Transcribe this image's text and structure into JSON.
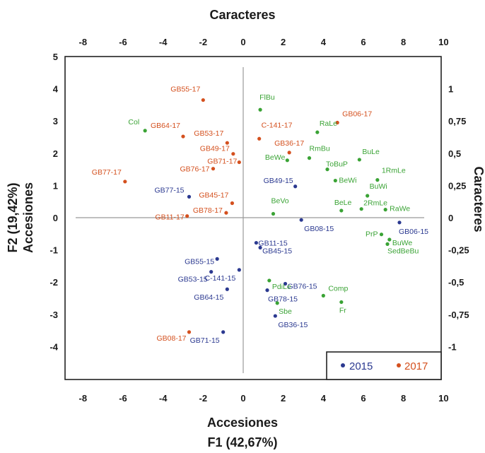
{
  "chart_data": {
    "type": "scatter",
    "title_top": "Caracteres",
    "title_bottom_1": "Accesiones",
    "title_bottom_2": "F1 (42,67%)",
    "title_left_1": "F2 (19,42%)",
    "title_left_2": "Accesiones",
    "title_right": "Caracteres",
    "bottom_axis": {
      "ticks": [
        "-8",
        "-6",
        "-4",
        "-2",
        "0",
        "2",
        "4",
        "6",
        "8",
        "10"
      ],
      "range": [
        -8,
        10
      ]
    },
    "top_axis": {
      "ticks": [
        "-8",
        "-6",
        "-4",
        "-2",
        "0",
        "2",
        "4",
        "6",
        "8",
        "10"
      ],
      "range": [
        -8,
        10
      ]
    },
    "left_axis": {
      "ticks": [
        "5",
        "4",
        "3",
        "2",
        "1",
        "0",
        "-1",
        "-2",
        "-3",
        "-4"
      ],
      "range": [
        -4,
        5
      ]
    },
    "right_axis": {
      "ticks": [
        "1",
        "0,75",
        "0,5",
        "0,25",
        "0",
        "-0,25",
        "-0,5",
        "-0,75",
        "-1"
      ],
      "range": [
        -1,
        1
      ]
    },
    "colors": {
      "2015": "#2b3990",
      "2017": "#d4501e",
      "traits": "#3aa335"
    },
    "legend": {
      "position": "bottom-right",
      "entries": [
        {
          "name": "2015",
          "color": "#2b3990"
        },
        {
          "name": "2017",
          "color": "#d4501e"
        }
      ]
    },
    "series": [
      {
        "name": "2015",
        "points": [
          {
            "label": "GB77-15",
            "x": -2.7,
            "y": 0.65
          },
          {
            "label": "GB49-15",
            "x": 2.6,
            "y": 0.97
          },
          {
            "label": "GB08-15",
            "x": 2.9,
            "y": -0.07
          },
          {
            "label": "GB06-15",
            "x": 7.8,
            "y": -0.15
          },
          {
            "label": "GB11-15",
            "x": 0.65,
            "y": -0.78
          },
          {
            "label": "GB45-15",
            "x": 0.85,
            "y": -0.93
          },
          {
            "label": "GB55-15",
            "x": -1.3,
            "y": -1.28
          },
          {
            "label": "GB53-15",
            "x": -1.6,
            "y": -1.68
          },
          {
            "label": "C-141-15",
            "x": -0.2,
            "y": -1.62
          },
          {
            "label": "GB64-15",
            "x": -0.8,
            "y": -2.22
          },
          {
            "label": "GB76-15",
            "x": 2.1,
            "y": -2.05
          },
          {
            "label": "GB78-15",
            "x": 1.2,
            "y": -2.25
          },
          {
            "label": "GB36-15",
            "x": 1.6,
            "y": -3.05
          },
          {
            "label": "GB71-15",
            "x": -1.0,
            "y": -3.55
          }
        ]
      },
      {
        "name": "2017",
        "points": [
          {
            "label": "GB55-17",
            "x": -2.0,
            "y": 3.65
          },
          {
            "label": "GB64-17",
            "x": -3.0,
            "y": 2.52
          },
          {
            "label": "GB53-17",
            "x": -0.8,
            "y": 2.32
          },
          {
            "label": "GB49-17",
            "x": -0.5,
            "y": 1.98
          },
          {
            "label": "GB71-17",
            "x": -0.2,
            "y": 1.72
          },
          {
            "label": "GB76-17",
            "x": -1.5,
            "y": 1.52
          },
          {
            "label": "GB77-17",
            "x": -5.9,
            "y": 1.12
          },
          {
            "label": "GB45-17",
            "x": -0.55,
            "y": 0.45
          },
          {
            "label": "GB78-17",
            "x": -0.85,
            "y": 0.15
          },
          {
            "label": "GB11-17",
            "x": -2.8,
            "y": 0.05
          },
          {
            "label": "C-141-17",
            "x": 0.8,
            "y": 2.45
          },
          {
            "label": "GB36-17",
            "x": 2.3,
            "y": 2.02
          },
          {
            "label": "GB06-17",
            "x": 4.7,
            "y": 2.95
          },
          {
            "label": "GB08-17",
            "x": -2.7,
            "y": -3.55
          }
        ]
      },
      {
        "name": "Caracteres",
        "points": [
          {
            "label": "Col",
            "x": -4.9,
            "y": 2.7
          },
          {
            "label": "FlBu",
            "x": 0.85,
            "y": 3.35
          },
          {
            "label": "RaLe",
            "x": 3.7,
            "y": 2.65
          },
          {
            "label": "RmBu",
            "x": 3.3,
            "y": 1.85
          },
          {
            "label": "BeWe",
            "x": 2.2,
            "y": 1.78
          },
          {
            "label": "BuLe",
            "x": 5.8,
            "y": 1.8
          },
          {
            "label": "ToBuP",
            "x": 4.2,
            "y": 1.5
          },
          {
            "label": "BeWi",
            "x": 4.6,
            "y": 1.15
          },
          {
            "label": "1RmLe",
            "x": 6.7,
            "y": 1.17
          },
          {
            "label": "BuWi",
            "x": 6.2,
            "y": 0.68
          },
          {
            "label": "BeVo",
            "x": 1.5,
            "y": 0.12
          },
          {
            "label": "BeLe",
            "x": 4.9,
            "y": 0.22
          },
          {
            "label": "2RmLe",
            "x": 5.9,
            "y": 0.27
          },
          {
            "label": "RaWe",
            "x": 7.1,
            "y": 0.25
          },
          {
            "label": "PrP",
            "x": 6.9,
            "y": -0.52
          },
          {
            "label": "BuWe",
            "x": 7.3,
            "y": -0.68
          },
          {
            "label": "SedBeBu",
            "x": 7.2,
            "y": -0.82
          },
          {
            "label": "PdiLe",
            "x": 1.3,
            "y": -1.95
          },
          {
            "label": "Comp",
            "x": 4.0,
            "y": -2.42
          },
          {
            "label": "Sbe",
            "x": 1.7,
            "y": -2.65
          },
          {
            "label": "Fr",
            "x": 4.9,
            "y": -2.62
          }
        ]
      }
    ]
  }
}
